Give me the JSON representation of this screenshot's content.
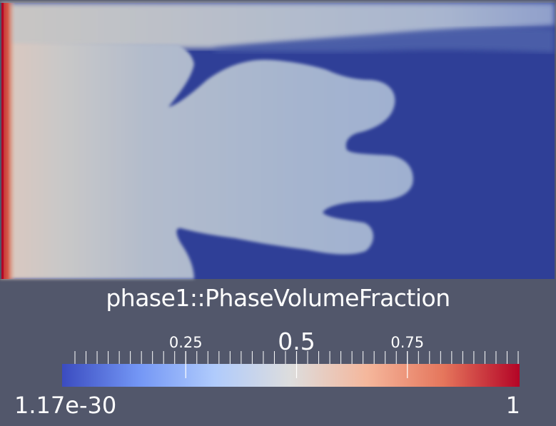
{
  "scalar_bar": {
    "title": "phase1::PhaseVolumeFraction",
    "range_min_label": "1.17e-30",
    "range_max_label": "1",
    "ticks": [
      {
        "value": 0.25,
        "label": "0.25",
        "major": false
      },
      {
        "value": 0.5,
        "label": "0.5",
        "major": true
      },
      {
        "value": 0.75,
        "label": "0.75",
        "major": false
      }
    ],
    "minor_tick_count": 40,
    "colormap": [
      "#3b4cc0",
      "#7396f5",
      "#b0cbfc",
      "#dddddd",
      "#f5b79c",
      "#e5765c",
      "#b40426"
    ]
  },
  "colors": {
    "background": "#52576b",
    "dominant_field": "#2f3f97",
    "bulk_fluid": "#a6b4cc",
    "left_wall": "#c5222b"
  }
}
